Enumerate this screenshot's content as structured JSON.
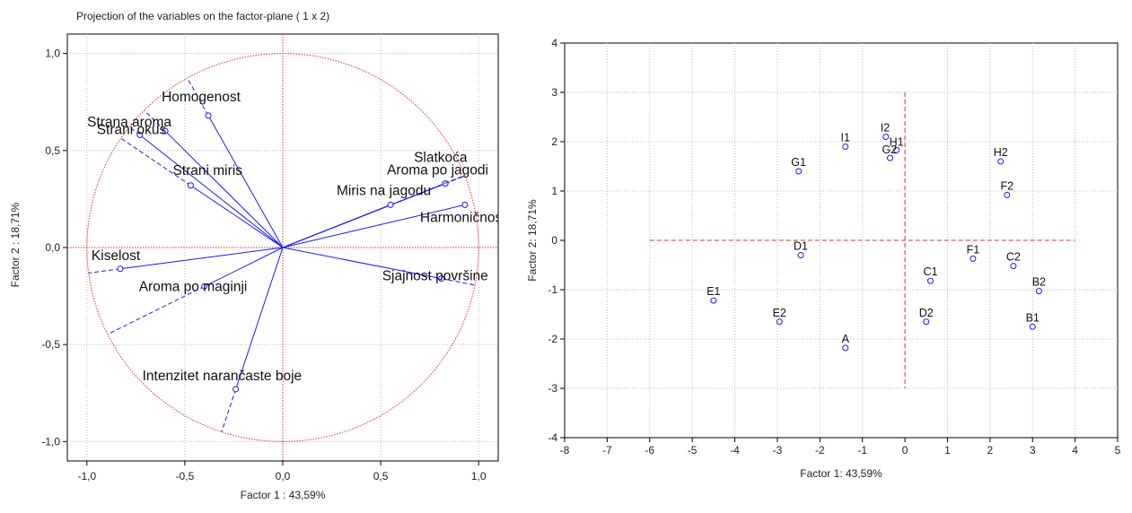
{
  "chart_data": [
    {
      "type": "scatter",
      "title": "Projection of the variables on the factor-plane (  1 x  2)",
      "xlabel": "Factor 1 : 43,59%",
      "ylabel": "Factor 2 : 18,71%",
      "xlim": [
        -1.1,
        1.1
      ],
      "ylim": [
        -1.1,
        1.1
      ],
      "xticks": [
        "-1,0",
        "-0,5",
        "0,0",
        "0,5",
        "1,0"
      ],
      "yticks": [
        "1,0",
        "0,5",
        "0,0",
        "-0,5",
        "-1,0"
      ],
      "grid": true,
      "unit_circle": true,
      "points": [
        {
          "name": "Homogenost",
          "x": -0.38,
          "y": 0.68
        },
        {
          "name": "Strana aroma",
          "x": -0.6,
          "y": 0.6
        },
        {
          "name": "Strani okus",
          "x": -0.73,
          "y": 0.58
        },
        {
          "name": "Strani miris",
          "x": -0.47,
          "y": 0.32
        },
        {
          "name": "Kiselost",
          "x": -0.83,
          "y": -0.11
        },
        {
          "name": "Aroma po maginji",
          "x": -0.4,
          "y": -0.2
        },
        {
          "name": "Intenzitet narančaste boje",
          "x": -0.24,
          "y": -0.73
        },
        {
          "name": "Slatkoća",
          "x": 0.83,
          "y": 0.33
        },
        {
          "name": "Aroma po jagodi",
          "x": 0.83,
          "y": 0.33
        },
        {
          "name": "Miris na jagodu",
          "x": 0.55,
          "y": 0.22
        },
        {
          "name": "Harmoničnost",
          "x": 0.93,
          "y": 0.22
        },
        {
          "name": "Sjajnost površine",
          "x": 0.81,
          "y": -0.16
        }
      ]
    },
    {
      "type": "scatter",
      "xlabel": "Factor 1: 43,59%",
      "ylabel": "Factor 2: 18,71%",
      "xlim": [
        -8,
        5
      ],
      "ylim": [
        -4,
        4
      ],
      "xticks": [
        "-8",
        "-7",
        "-6",
        "-5",
        "-4",
        "-3",
        "-2",
        "-1",
        "0",
        "1",
        "2",
        "3",
        "4",
        "5"
      ],
      "yticks": [
        "4",
        "3",
        "2",
        "1",
        "0",
        "-1",
        "-2",
        "-3",
        "-4"
      ],
      "grid": true,
      "points": [
        {
          "name": "I2",
          "x": -0.45,
          "y": 2.1
        },
        {
          "name": "I1",
          "x": -1.4,
          "y": 1.9
        },
        {
          "name": "H1",
          "x": -0.2,
          "y": 1.83
        },
        {
          "name": "G2",
          "x": -0.35,
          "y": 1.67
        },
        {
          "name": "G1",
          "x": -2.5,
          "y": 1.4
        },
        {
          "name": "H2",
          "x": 2.25,
          "y": 1.6
        },
        {
          "name": "F2",
          "x": 2.4,
          "y": 0.92
        },
        {
          "name": "D1",
          "x": -2.45,
          "y": -0.3
        },
        {
          "name": "F1",
          "x": 1.6,
          "y": -0.37
        },
        {
          "name": "C2",
          "x": 2.55,
          "y": -0.52
        },
        {
          "name": "C1",
          "x": 0.6,
          "y": -0.82
        },
        {
          "name": "B2",
          "x": 3.15,
          "y": -1.03
        },
        {
          "name": "E1",
          "x": -4.5,
          "y": -1.22
        },
        {
          "name": "E2",
          "x": -2.95,
          "y": -1.65
        },
        {
          "name": "D2",
          "x": 0.5,
          "y": -1.65
        },
        {
          "name": "B1",
          "x": 3.0,
          "y": -1.75
        },
        {
          "name": "A",
          "x": -1.4,
          "y": -2.18
        }
      ]
    }
  ]
}
